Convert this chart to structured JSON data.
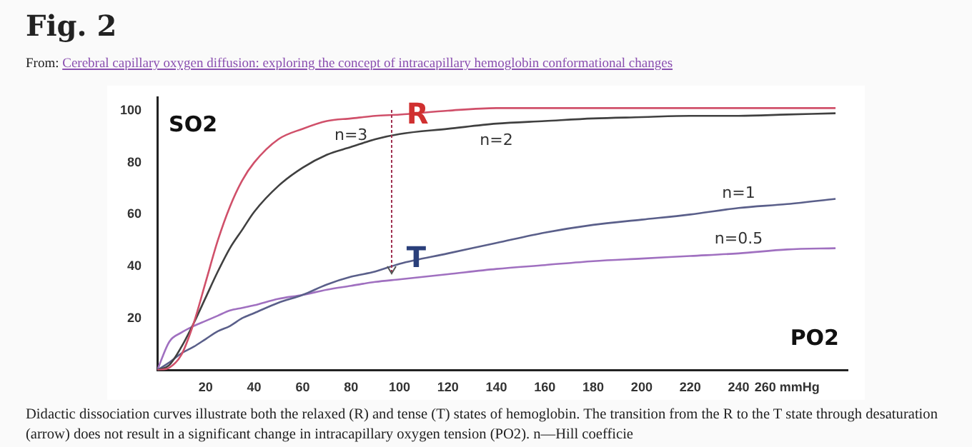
{
  "chart_data": {
    "type": "line",
    "title": "Fig. 2",
    "subtitle": "From: Cerebral capillary oxygen diffusion: exploring the concept of intracapillary hemoglobin conformational changes",
    "xlabel": "PO2",
    "ylabel": "SO2",
    "x": [
      0,
      5,
      10,
      15,
      20,
      25,
      30,
      35,
      40,
      50,
      60,
      70,
      80,
      90,
      100,
      120,
      140,
      160,
      180,
      200,
      220,
      240,
      260,
      280
    ],
    "series": [
      {
        "name": "n=3",
        "color": "#d0506a",
        "values": [
          0,
          1,
          6,
          18,
          34,
          50,
          63,
          73,
          80,
          89,
          93,
          96,
          97,
          98,
          98.5,
          100,
          101,
          101,
          101,
          101,
          101,
          101,
          101,
          101
        ]
      },
      {
        "name": "n=2",
        "color": "#404040",
        "values": [
          0,
          2,
          9,
          18,
          28,
          38,
          47,
          54,
          61,
          71,
          78,
          83,
          86,
          89,
          91,
          93,
          95,
          96,
          97,
          97.5,
          98,
          98,
          98.5,
          99
        ]
      },
      {
        "name": "n=1",
        "color": "#5a5f8a",
        "values": [
          0,
          3,
          6.5,
          9,
          12,
          15,
          17,
          20,
          22,
          26,
          29,
          33,
          36,
          38,
          41,
          45,
          49,
          53,
          56,
          58,
          60,
          62.5,
          64,
          66
        ]
      },
      {
        "name": "n=0.5",
        "color": "#a070c0",
        "values": [
          0,
          11,
          14.5,
          17,
          19,
          21,
          23,
          24,
          25,
          27.5,
          29,
          31,
          32.5,
          34,
          35,
          37,
          39,
          40.5,
          42,
          43,
          44,
          45,
          46.5,
          47
        ]
      }
    ],
    "xlim": [
      0,
      285
    ],
    "xticks": [
      20,
      40,
      60,
      80,
      100,
      120,
      140,
      160,
      180,
      200,
      220,
      240,
      {
        "value": 260,
        "label": "260 mmHg"
      }
    ],
    "ylim": [
      0,
      105
    ],
    "yticks": [
      20,
      40,
      60,
      80,
      100
    ],
    "grid": false,
    "legend": false,
    "marker": "none",
    "line_style": "solid",
    "annotations": [
      {
        "text": "R",
        "x": 97,
        "y": 100
      },
      {
        "text": "T",
        "x": 97,
        "y": 37
      },
      "Didactic dissociation curves illustrate both the relaxed (R) and tense (T) states of hemoglobin. The transition from the R to the T state through desaturation (arrow) does not result in a significant change in intracapillary oxygen tension (PO2). n—Hill coefficie"
    ]
  }
}
